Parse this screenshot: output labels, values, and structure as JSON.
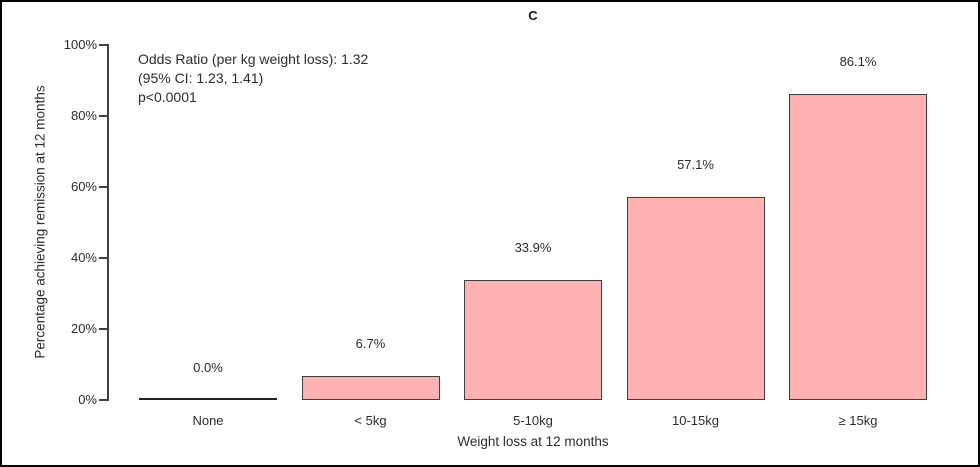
{
  "chart_data": {
    "type": "bar",
    "title": "C",
    "categories": [
      "None",
      "< 5kg",
      "5-10kg",
      "10-15kg",
      "≥ 15kg"
    ],
    "values": [
      0.0,
      6.7,
      33.9,
      57.1,
      86.1
    ],
    "value_labels": [
      "0.0%",
      "6.7%",
      "33.9%",
      "57.1%",
      "86.1%"
    ],
    "xlabel": "Weight loss at 12 months",
    "ylabel": "Percentage achieving remission at 12 months",
    "ylim": [
      0,
      100
    ],
    "yticks": [
      0,
      20,
      40,
      60,
      80,
      100
    ],
    "ytick_labels": [
      "0%",
      "20%",
      "40%",
      "60%",
      "80%",
      "100%"
    ],
    "grid": false,
    "legend": "none",
    "bar_fill_color": "#feb2b2",
    "bar_border_color": "#404040",
    "annotation_lines": [
      "Odds Ratio (per kg weight loss): 1.32",
      "(95% CI: 1.23, 1.41)",
      "p<0.0001"
    ]
  }
}
